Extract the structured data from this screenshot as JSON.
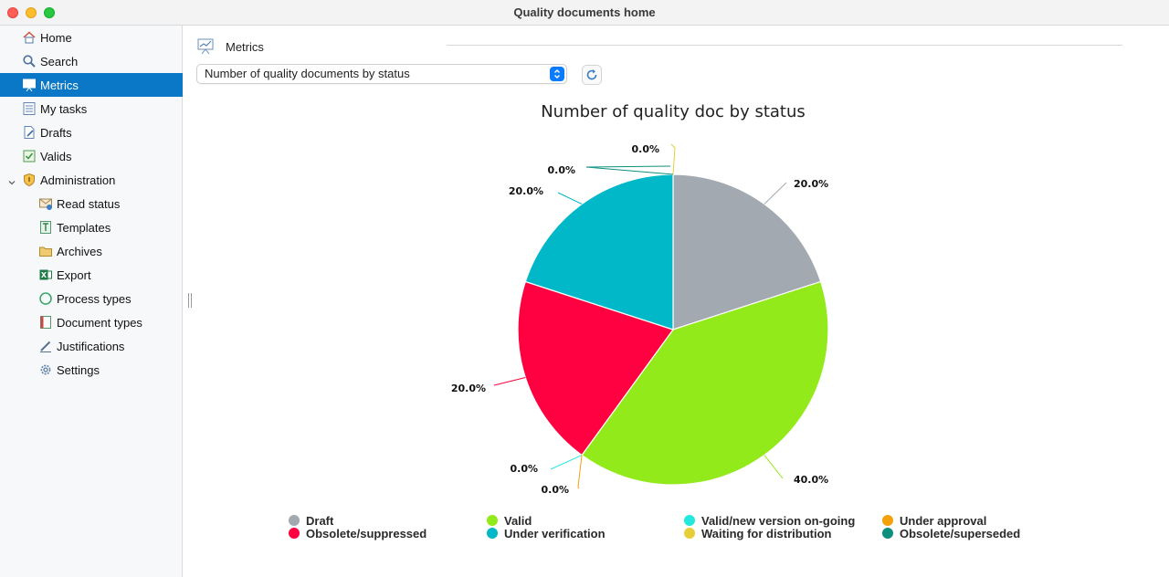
{
  "window": {
    "title": "Quality documents home"
  },
  "sidebar": {
    "items": [
      {
        "label": "Home",
        "icon": "home-icon",
        "selected": false,
        "indent": 0
      },
      {
        "label": "Search",
        "icon": "search-icon",
        "selected": false,
        "indent": 0
      },
      {
        "label": "Metrics",
        "icon": "metrics-icon",
        "selected": true,
        "indent": 0
      },
      {
        "label": "My tasks",
        "icon": "tasks-icon",
        "selected": false,
        "indent": 0
      },
      {
        "label": "Drafts",
        "icon": "drafts-icon",
        "selected": false,
        "indent": 0
      },
      {
        "label": "Valids",
        "icon": "valids-icon",
        "selected": false,
        "indent": 0
      },
      {
        "label": "Administration",
        "icon": "shield-icon",
        "selected": false,
        "indent": 0,
        "expandable": true
      },
      {
        "label": "Read status",
        "icon": "read-status-icon",
        "selected": false,
        "indent": 1
      },
      {
        "label": "Templates",
        "icon": "templates-icon",
        "selected": false,
        "indent": 1
      },
      {
        "label": "Archives",
        "icon": "archives-icon",
        "selected": false,
        "indent": 1
      },
      {
        "label": "Export",
        "icon": "excel-icon",
        "selected": false,
        "indent": 1
      },
      {
        "label": "Process types",
        "icon": "recycle-icon",
        "selected": false,
        "indent": 1
      },
      {
        "label": "Document types",
        "icon": "document-types-icon",
        "selected": false,
        "indent": 1
      },
      {
        "label": "Justifications",
        "icon": "pen-icon",
        "selected": false,
        "indent": 1
      },
      {
        "label": "Settings",
        "icon": "gear-icon",
        "selected": false,
        "indent": 1
      }
    ]
  },
  "main": {
    "section_title": "Metrics",
    "report_select": {
      "value": "Number of quality documents by status"
    }
  },
  "chart_data": {
    "type": "pie",
    "title": "Number of quality doc by status",
    "slices": [
      {
        "name": "Draft",
        "value": 20.0,
        "label": "20.0%",
        "color": "#a2a9b0"
      },
      {
        "name": "Valid",
        "value": 40.0,
        "label": "40.0%",
        "color": "#93ea1a"
      },
      {
        "name": "Valid/new version on-going",
        "value": 0.0,
        "label": "0.0%",
        "color": "#22e8e0"
      },
      {
        "name": "Under approval",
        "value": 0.0,
        "label": "0.0%",
        "color": "#f5a00a"
      },
      {
        "name": "Obsolete/suppressed",
        "value": 20.0,
        "label": "20.0%",
        "color": "#ff0040"
      },
      {
        "name": "Under verification",
        "value": 20.0,
        "label": "20.0%",
        "color": "#00b8c8"
      },
      {
        "name": "Waiting for distribution",
        "value": 0.0,
        "label": "0.0%",
        "color": "#e6cf36"
      },
      {
        "name": "Obsolete/superseded",
        "value": 0.0,
        "label": "0.0%",
        "color": "#0d8f80"
      }
    ],
    "legend": [
      "Draft",
      "Valid",
      "Valid/new version on-going",
      "Under approval",
      "Obsolete/suppressed",
      "Under verification",
      "Waiting for distribution",
      "Obsolete/superseded"
    ],
    "legend_position": "bottom"
  }
}
